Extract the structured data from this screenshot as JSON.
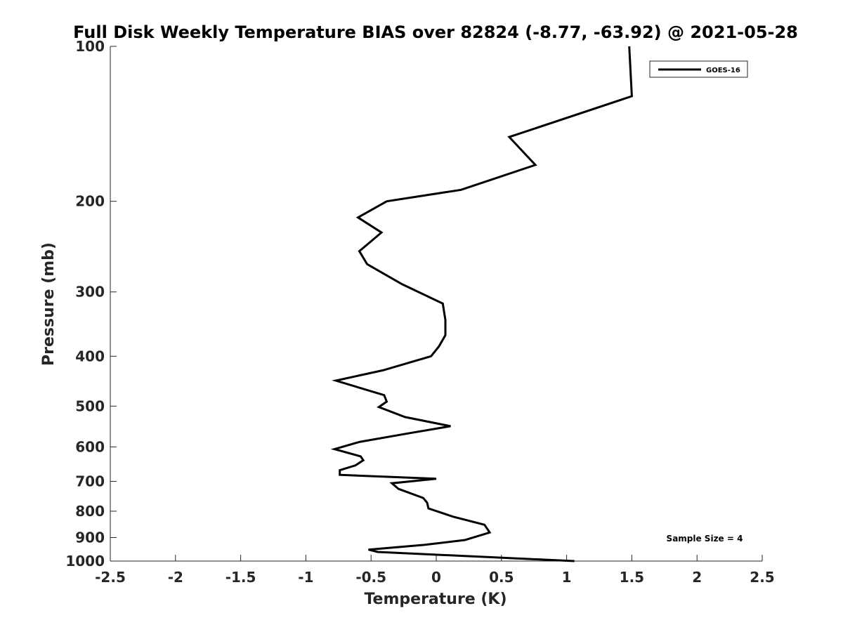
{
  "chart_data": {
    "type": "line",
    "title": "Full Disk Weekly Temperature BIAS over 82824 (-8.77, -63.92) @ 2021-05-28",
    "xlabel": "Temperature (K)",
    "ylabel": "Pressure (mb)",
    "xlim": [
      -2.5,
      2.5
    ],
    "ylim": [
      100,
      1000
    ],
    "y_scale": "log",
    "y_reversed": true,
    "grid": false,
    "legend_position": "top-right",
    "x_ticks": [
      -2.5,
      -2,
      -1.5,
      -1,
      -0.5,
      0,
      0.5,
      1,
      1.5,
      2,
      2.5
    ],
    "x_tick_labels": [
      "-2.5",
      "-2",
      "-1.5",
      "-1",
      "-0.5",
      "0",
      "0.5",
      "1",
      "1.5",
      "2",
      "2.5"
    ],
    "y_ticks": [
      100,
      200,
      300,
      400,
      500,
      600,
      700,
      800,
      900,
      1000
    ],
    "y_tick_labels": [
      "100",
      "200",
      "300",
      "400",
      "500",
      "600",
      "700",
      "800",
      "900",
      "1000"
    ],
    "series": [
      {
        "name": "GOES-16",
        "color": "#000000",
        "points": [
          [
            1.48,
            100
          ],
          [
            1.5,
            125
          ],
          [
            0.56,
            150
          ],
          [
            0.76,
            170
          ],
          [
            0.19,
            190
          ],
          [
            -0.38,
            200
          ],
          [
            -0.6,
            215
          ],
          [
            -0.42,
            230
          ],
          [
            -0.59,
            250
          ],
          [
            -0.53,
            265
          ],
          [
            -0.26,
            290
          ],
          [
            0.05,
            316
          ],
          [
            0.07,
            340
          ],
          [
            0.07,
            364
          ],
          [
            0.02,
            383
          ],
          [
            -0.04,
            400
          ],
          [
            -0.41,
            426
          ],
          [
            -0.77,
            446
          ],
          [
            -0.4,
            476
          ],
          [
            -0.38,
            490
          ],
          [
            -0.44,
            502
          ],
          [
            -0.24,
            525
          ],
          [
            0.11,
            547
          ],
          [
            -0.22,
            565
          ],
          [
            -0.59,
            587
          ],
          [
            -0.78,
            606
          ],
          [
            -0.58,
            626
          ],
          [
            -0.56,
            637
          ],
          [
            -0.62,
            652
          ],
          [
            -0.74,
            666
          ],
          [
            -0.74,
            680
          ],
          [
            0.0,
            692
          ],
          [
            -0.34,
            706
          ],
          [
            -0.29,
            724
          ],
          [
            -0.1,
            754
          ],
          [
            -0.07,
            770
          ],
          [
            -0.06,
            790
          ],
          [
            0.13,
            820
          ],
          [
            0.37,
            850
          ],
          [
            0.41,
            880
          ],
          [
            0.22,
            910
          ],
          [
            -0.09,
            930
          ],
          [
            -0.52,
            950
          ],
          [
            -0.45,
            960
          ],
          [
            1.06,
            1000
          ]
        ]
      }
    ],
    "annotations": [
      "Sample Size = 4"
    ]
  }
}
